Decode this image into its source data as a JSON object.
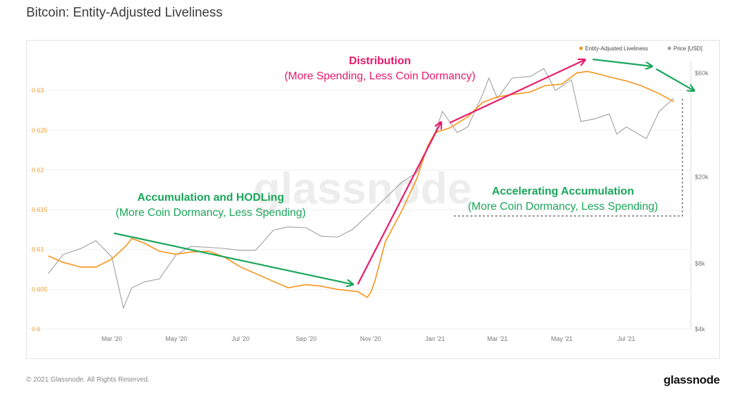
{
  "page": {
    "title": "Bitcoin: Entity-Adjusted Liveliness",
    "copyright": "© 2021 Glassnode. All Rights Reserved.",
    "brand": "glassnode",
    "watermark": "glassnode"
  },
  "colors": {
    "liveliness": "#f7931a",
    "price": "#9e9e9e",
    "distribution": "#e8196b",
    "accumulation": "#1aa55a",
    "grid": "#efefef",
    "axis_text": "#777777",
    "left_axis_text": "#f0a030"
  },
  "chart_data": {
    "type": "line",
    "legend": {
      "position": "top-right",
      "items": [
        "Entity-Adjusted Liveliness",
        "Price [USD]"
      ]
    },
    "x_ticks": [
      "Mar '20",
      "May '20",
      "Jul '20",
      "Sep '20",
      "Nov '20",
      "Jan '21",
      "Mar '21",
      "May '21",
      "Jul '21"
    ],
    "y_left": {
      "ticks": [
        "0.6",
        "0.605",
        "0.61",
        "0.615",
        "0.62",
        "0.625",
        "0.63"
      ],
      "range": [
        0.6,
        0.6327
      ]
    },
    "y_right": {
      "ticks": [
        "$4k",
        "$8k",
        "$20k",
        "$60k"
      ],
      "scale": "log",
      "range": [
        4000,
        70000
      ]
    },
    "series": [
      {
        "name": "Entity-Adjusted Liveliness",
        "axis": "left",
        "points": [
          [
            "2020-01-01",
            0.6092
          ],
          [
            "2020-01-15",
            0.6084
          ],
          [
            "2020-02-01",
            0.6078
          ],
          [
            "2020-02-15",
            0.6078
          ],
          [
            "2020-03-01",
            0.6088
          ],
          [
            "2020-03-14",
            0.6104
          ],
          [
            "2020-03-20",
            0.6114
          ],
          [
            "2020-04-01",
            0.6108
          ],
          [
            "2020-04-15",
            0.6098
          ],
          [
            "2020-05-01",
            0.6094
          ],
          [
            "2020-05-15",
            0.6097
          ],
          [
            "2020-06-01",
            0.6098
          ],
          [
            "2020-06-15",
            0.6091
          ],
          [
            "2020-07-01",
            0.6078
          ],
          [
            "2020-07-15",
            0.607
          ],
          [
            "2020-08-01",
            0.606
          ],
          [
            "2020-08-15",
            0.6052
          ],
          [
            "2020-09-01",
            0.6056
          ],
          [
            "2020-09-15",
            0.6054
          ],
          [
            "2020-10-01",
            0.605
          ],
          [
            "2020-10-20",
            0.6047
          ],
          [
            "2020-10-29",
            0.604
          ],
          [
            "2020-11-01",
            0.6046
          ],
          [
            "2020-11-05",
            0.606
          ],
          [
            "2020-11-15",
            0.611
          ],
          [
            "2020-12-01",
            0.615
          ],
          [
            "2020-12-15",
            0.619
          ],
          [
            "2020-12-25",
            0.623
          ],
          [
            "2021-01-01",
            0.6247
          ],
          [
            "2021-01-15",
            0.6253
          ],
          [
            "2021-02-01",
            0.6267
          ],
          [
            "2021-02-15",
            0.6285
          ],
          [
            "2021-03-01",
            0.6292
          ],
          [
            "2021-03-15",
            0.6295
          ],
          [
            "2021-04-01",
            0.6298
          ],
          [
            "2021-04-15",
            0.6306
          ],
          [
            "2021-05-01",
            0.6308
          ],
          [
            "2021-05-15",
            0.6322
          ],
          [
            "2021-05-25",
            0.6324
          ],
          [
            "2021-06-01",
            0.6322
          ],
          [
            "2021-06-15",
            0.6317
          ],
          [
            "2021-07-01",
            0.6312
          ],
          [
            "2021-07-15",
            0.6306
          ],
          [
            "2021-08-01",
            0.6296
          ],
          [
            "2021-08-15",
            0.6286
          ]
        ]
      },
      {
        "name": "Price [USD]",
        "axis": "right",
        "points": [
          [
            "2020-01-01",
            7200
          ],
          [
            "2020-01-15",
            8800
          ],
          [
            "2020-02-01",
            9400
          ],
          [
            "2020-02-15",
            10200
          ],
          [
            "2020-03-01",
            8600
          ],
          [
            "2020-03-12",
            5000
          ],
          [
            "2020-03-20",
            6200
          ],
          [
            "2020-04-01",
            6600
          ],
          [
            "2020-04-15",
            6800
          ],
          [
            "2020-05-01",
            8800
          ],
          [
            "2020-05-15",
            9600
          ],
          [
            "2020-06-01",
            9500
          ],
          [
            "2020-06-15",
            9400
          ],
          [
            "2020-07-01",
            9200
          ],
          [
            "2020-07-15",
            9200
          ],
          [
            "2020-08-01",
            11400
          ],
          [
            "2020-08-15",
            11800
          ],
          [
            "2020-09-01",
            11700
          ],
          [
            "2020-09-15",
            10700
          ],
          [
            "2020-10-01",
            10600
          ],
          [
            "2020-10-15",
            11500
          ],
          [
            "2020-11-01",
            13700
          ],
          [
            "2020-11-15",
            16000
          ],
          [
            "2020-12-01",
            19000
          ],
          [
            "2020-12-15",
            21000
          ],
          [
            "2021-01-01",
            32000
          ],
          [
            "2021-01-08",
            40000
          ],
          [
            "2021-01-22",
            32000
          ],
          [
            "2021-02-01",
            34000
          ],
          [
            "2021-02-15",
            48000
          ],
          [
            "2021-02-21",
            57000
          ],
          [
            "2021-03-01",
            46000
          ],
          [
            "2021-03-15",
            57000
          ],
          [
            "2021-04-01",
            58000
          ],
          [
            "2021-04-14",
            63000
          ],
          [
            "2021-04-25",
            50000
          ],
          [
            "2021-05-10",
            56000
          ],
          [
            "2021-05-19",
            36000
          ],
          [
            "2021-06-01",
            37000
          ],
          [
            "2021-06-15",
            39000
          ],
          [
            "2021-06-22",
            31500
          ],
          [
            "2021-07-01",
            34000
          ],
          [
            "2021-07-20",
            30000
          ],
          [
            "2021-08-01",
            40000
          ],
          [
            "2021-08-15",
            46000
          ]
        ]
      }
    ],
    "annotations": [
      {
        "title": "Accumulation and HODLing",
        "subtitle": "(More Coin Dormancy, Less Spending)",
        "color": "accumulation"
      },
      {
        "title": "Distribution",
        "subtitle": "(More Spending, Less Coin Dormancy)",
        "color": "distribution"
      },
      {
        "title": "Accelerating Accumulation",
        "subtitle": "(More Coin Dormancy, Less Spending)",
        "color": "accumulation"
      }
    ]
  }
}
